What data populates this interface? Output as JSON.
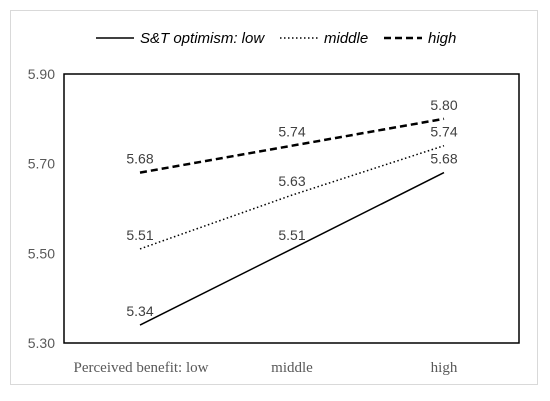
{
  "chart_data": {
    "type": "line",
    "title": "",
    "xlabel": "",
    "ylabel": "",
    "categories": [
      "Perceived benefit: low",
      "middle",
      "high"
    ],
    "ylim": [
      5.3,
      5.9
    ],
    "yticks": [
      "5.30",
      "5.50",
      "5.70",
      "5.90"
    ],
    "grid": false,
    "legend_position": "top",
    "series": [
      {
        "name": "S&T optimism: low",
        "values": [
          5.34,
          5.51,
          5.68
        ],
        "labels": [
          "5.34",
          "5.51",
          "5.68"
        ],
        "style": "solid",
        "color": "#000000"
      },
      {
        "name": "middle",
        "values": [
          5.51,
          5.63,
          5.74
        ],
        "labels": [
          "5.51",
          "5.63",
          "5.74"
        ],
        "style": "dotted",
        "color": "#000000"
      },
      {
        "name": "high",
        "values": [
          5.68,
          5.74,
          5.8
        ],
        "labels": [
          "5.68",
          "5.74",
          "5.80"
        ],
        "style": "dashed",
        "color": "#000000"
      }
    ]
  }
}
